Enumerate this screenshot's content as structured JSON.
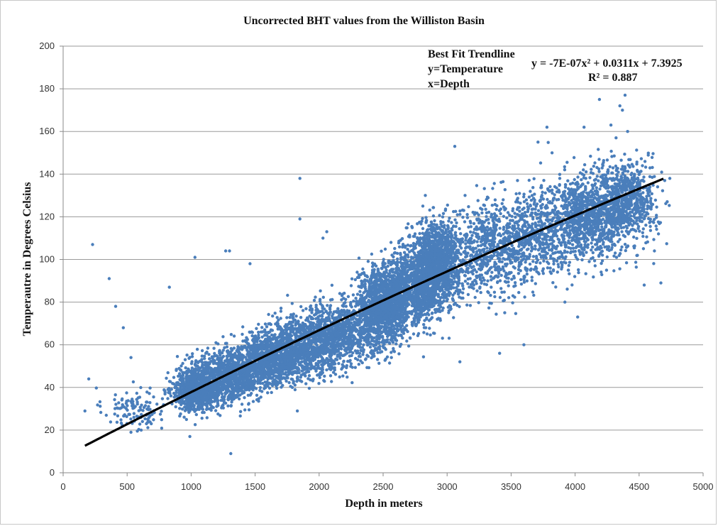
{
  "chart_data": {
    "type": "scatter",
    "title": "Uncorrected BHT values from the Williston Basin",
    "xlabel": "Depth in meters",
    "ylabel": "Temperautre in Degrees Celsius",
    "xlim": [
      0,
      5000
    ],
    "ylim": [
      0,
      200
    ],
    "xticks": [
      "0",
      "500",
      "1000",
      "1500",
      "2000",
      "2500",
      "3000",
      "3500",
      "4000",
      "4500",
      "5000"
    ],
    "yticks": [
      "0",
      "20",
      "40",
      "60",
      "80",
      "100",
      "120",
      "140",
      "160",
      "180",
      "200"
    ],
    "grid": "horizontal",
    "marker_color": "#4a7ebb",
    "trendline_color": "#000000",
    "annotations": {
      "legend_line1": "Best Fit Trendline",
      "legend_line2": "y=Temperature",
      "legend_line3": "x=Depth",
      "equation": "y = -7E-07x² + 0.0311x + 7.3925",
      "r_squared": "R² = 0.887"
    },
    "trendline": {
      "type": "polynomial",
      "a": -7e-07,
      "b": 0.0311,
      "c": 7.3925,
      "x_range": [
        170,
        4700
      ]
    },
    "series": [
      {
        "clusters": [
          {
            "x": 550,
            "y": 30,
            "sx": 120,
            "sy": 5,
            "n": 120
          },
          {
            "x": 1050,
            "y": 39,
            "sx": 90,
            "sy": 5,
            "n": 900
          },
          {
            "x": 1300,
            "y": 45,
            "sx": 150,
            "sy": 6,
            "n": 900
          },
          {
            "x": 1600,
            "y": 53,
            "sx": 150,
            "sy": 6,
            "n": 1000
          },
          {
            "x": 1900,
            "y": 60,
            "sx": 150,
            "sy": 7,
            "n": 1000
          },
          {
            "x": 2200,
            "y": 66,
            "sx": 150,
            "sy": 7,
            "n": 700
          },
          {
            "x": 2500,
            "y": 78,
            "sx": 100,
            "sy": 9,
            "n": 1200
          },
          {
            "x": 2750,
            "y": 88,
            "sx": 120,
            "sy": 9,
            "n": 1000
          },
          {
            "x": 2920,
            "y": 98,
            "sx": 90,
            "sy": 9,
            "n": 1200
          },
          {
            "x": 3300,
            "y": 105,
            "sx": 180,
            "sy": 11,
            "n": 700
          },
          {
            "x": 3700,
            "y": 112,
            "sx": 170,
            "sy": 11,
            "n": 600
          },
          {
            "x": 4100,
            "y": 120,
            "sx": 150,
            "sy": 10,
            "n": 900
          },
          {
            "x": 4400,
            "y": 127,
            "sx": 120,
            "sy": 9,
            "n": 700
          }
        ],
        "outliers": [
          [
            170,
            29
          ],
          [
            200,
            44
          ],
          [
            230,
            107
          ],
          [
            360,
            91
          ],
          [
            410,
            78
          ],
          [
            470,
            68
          ],
          [
            530,
            54
          ],
          [
            530,
            19
          ],
          [
            610,
            20
          ],
          [
            830,
            87
          ],
          [
            990,
            17
          ],
          [
            1030,
            101
          ],
          [
            1270,
            104
          ],
          [
            1300,
            104
          ],
          [
            1310,
            9
          ],
          [
            1460,
            98
          ],
          [
            1850,
            138
          ],
          [
            1850,
            119
          ],
          [
            1830,
            29
          ],
          [
            2060,
            113
          ],
          [
            2030,
            110
          ],
          [
            3060,
            153
          ],
          [
            3100,
            52
          ],
          [
            3410,
            56
          ],
          [
            3600,
            60
          ],
          [
            3780,
            162
          ],
          [
            3710,
            155
          ],
          [
            3820,
            150
          ],
          [
            3920,
            80
          ],
          [
            4020,
            73
          ],
          [
            4070,
            162
          ],
          [
            4190,
            175
          ],
          [
            4280,
            163
          ],
          [
            4320,
            157
          ],
          [
            4350,
            172
          ],
          [
            4370,
            170
          ],
          [
            4390,
            177
          ],
          [
            4410,
            160
          ],
          [
            4540,
            88
          ],
          [
            4620,
            104
          ],
          [
            4670,
            89
          ],
          [
            4700,
            137
          ],
          [
            3550,
            137
          ],
          [
            3880,
            138
          ],
          [
            2640,
            100
          ],
          [
            2830,
            130
          ],
          [
            3140,
            130
          ]
        ]
      }
    ]
  }
}
